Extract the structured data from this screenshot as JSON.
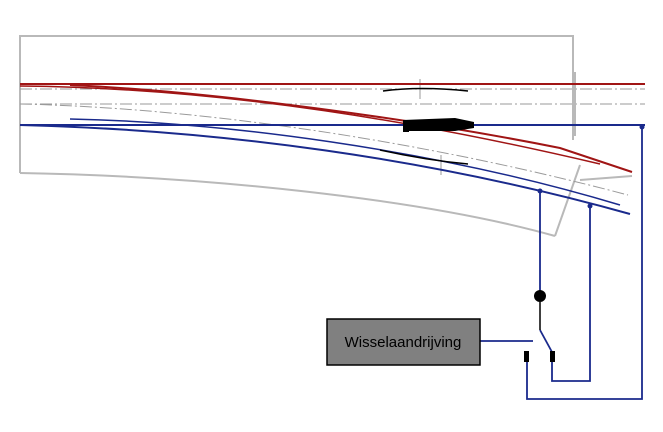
{
  "diagram": {
    "actuator_label": "Wisselaandrijving"
  },
  "colors": {
    "rail_red": "#a01515",
    "rail_blue": "#1a2a8c",
    "sleeper_outline": "#b9b9b9",
    "centerline": "#9a9a9a",
    "actuator_fill": "#808080",
    "point_motor": "#000000"
  }
}
